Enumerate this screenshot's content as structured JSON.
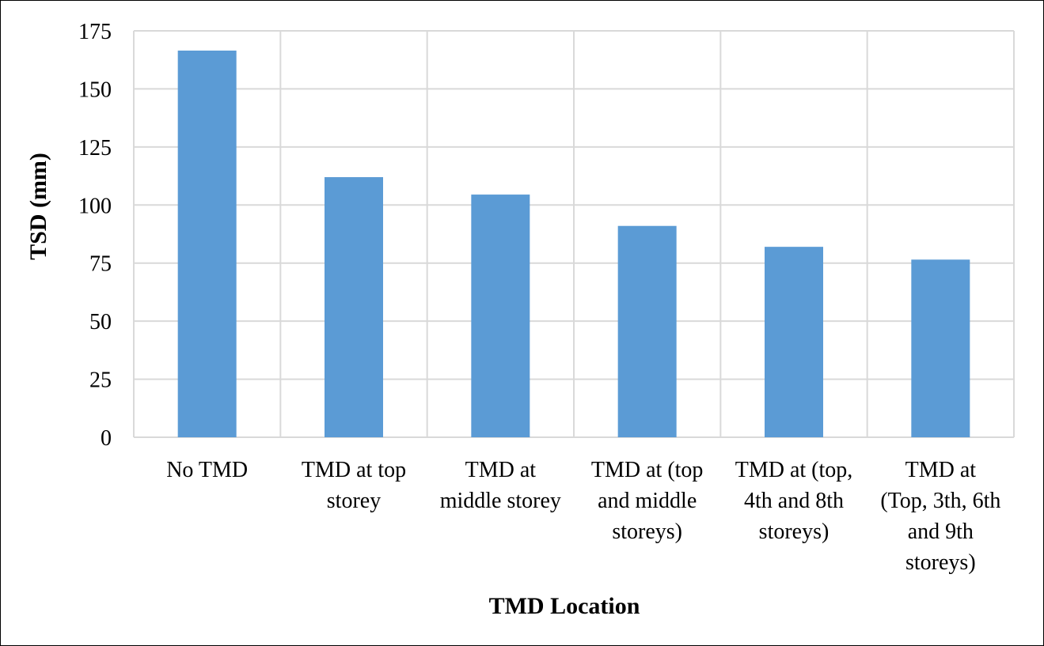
{
  "chart_data": {
    "type": "bar",
    "categories": [
      [
        "No TMD"
      ],
      [
        "TMD at top",
        "storey"
      ],
      [
        "TMD at",
        "middle storey"
      ],
      [
        "TMD at (top",
        "and middle",
        "storeys)"
      ],
      [
        "TMD at (top,",
        "4th and 8th",
        "storeys)"
      ],
      [
        "TMD at",
        "(Top, 3th, 6th",
        "and 9th",
        "storeys)"
      ]
    ],
    "values": [
      166.5,
      112,
      104.5,
      91,
      82,
      76.5
    ],
    "xlabel": "TMD Location",
    "ylabel": "TSD (mm)",
    "ylim": [
      0,
      175
    ],
    "yticks": [
      0,
      25,
      50,
      75,
      100,
      125,
      150,
      175
    ],
    "grid": true,
    "bar_color": "#5b9bd5",
    "legend": "none"
  }
}
